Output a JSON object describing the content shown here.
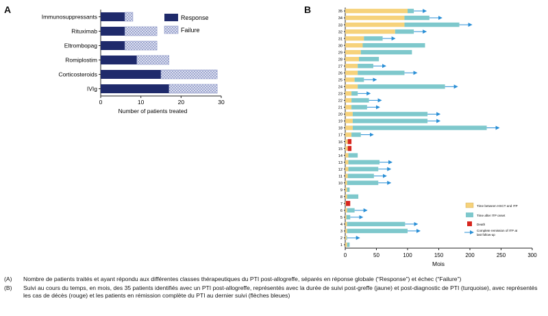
{
  "panel_a_letter": "A",
  "panel_b_letter": "B",
  "chart_data": [
    {
      "type": "bar",
      "orientation": "horizontal",
      "stacked": true,
      "categories": [
        "Immunosuppressants",
        "Rituximab",
        "Eltrombopag",
        "Romiplostim",
        "Corticosteroids",
        "IVIg"
      ],
      "series": [
        {
          "name": "Response",
          "values": [
            6,
            6,
            6,
            9,
            15,
            17
          ],
          "color": "#1f2a6b"
        },
        {
          "name": "Failure",
          "values": [
            2,
            8,
            8,
            8,
            14,
            12
          ],
          "color": "#c9d0ea"
        }
      ],
      "xlabel": "Number of patients treated",
      "xticks": [
        "0",
        "10",
        "20",
        "30"
      ],
      "xlim": [
        0,
        30
      ],
      "legend_position": "top-right"
    },
    {
      "type": "bar",
      "orientation": "horizontal",
      "stacked": true,
      "categories": [
        "1",
        "2",
        "3",
        "4",
        "5",
        "6",
        "7",
        "8",
        "9",
        "10",
        "11",
        "12",
        "13",
        "14",
        "15",
        "16",
        "17",
        "18",
        "19",
        "20",
        "21",
        "22",
        "23",
        "24",
        "25",
        "26",
        "27",
        "28",
        "29",
        "30",
        "31",
        "32",
        "33",
        "34",
        "35"
      ],
      "series": [
        {
          "name": "Time between HSCT and ITP",
          "color": "#f6d27b",
          "values": [
            3,
            2,
            3,
            3,
            2,
            3,
            1,
            3,
            3,
            3,
            4,
            5,
            5,
            5,
            4,
            4,
            10,
            12,
            12,
            12,
            10,
            10,
            10,
            20,
            15,
            20,
            20,
            22,
            25,
            28,
            30,
            80,
            95,
            95,
            100
          ]
        },
        {
          "name": "Time after ITP onset",
          "color": "#7ec8cc",
          "values": [
            4,
            1,
            97,
            93,
            6,
            12,
            0,
            18,
            4,
            50,
            42,
            48,
            50,
            15,
            0,
            0,
            15,
            215,
            120,
            120,
            25,
            28,
            10,
            140,
            15,
            75,
            25,
            32,
            82,
            100,
            30,
            30,
            88,
            40,
            10
          ]
        },
        {
          "name": "Death",
          "color": "#d7261e",
          "values": [
            0,
            0,
            0,
            0,
            0,
            0,
            7,
            0,
            0,
            0,
            0,
            0,
            0,
            0,
            6,
            6,
            0,
            0,
            0,
            0,
            0,
            0,
            0,
            0,
            0,
            0,
            0,
            0,
            0,
            0,
            0,
            0,
            0,
            0,
            0
          ]
        }
      ],
      "complete_remission_arrow": [
        false,
        true,
        true,
        true,
        true,
        true,
        false,
        false,
        false,
        true,
        true,
        true,
        true,
        false,
        false,
        false,
        true,
        true,
        true,
        true,
        true,
        true,
        true,
        true,
        true,
        true,
        true,
        false,
        false,
        false,
        true,
        true,
        true,
        true,
        true
      ],
      "arrow_label": "Complete remission of ITP at last follow-up",
      "arrow_color": "#2a8fd6",
      "xlabel": "Mois",
      "xticks": [
        "0",
        "50",
        "100",
        "150",
        "200",
        "250",
        "300"
      ],
      "xlim": [
        0,
        300
      ],
      "legend_position": "bottom-right"
    }
  ],
  "caption": [
    {
      "key": "(A)",
      "text": "Nombre de patients traités et ayant répondu aux différentes classes thérapeutiques du PTI post-allogreffe, séparés en réponse globale (“Response”) et échec (“Failure”)"
    },
    {
      "key": "(B)",
      "text": "Suivi au cours du temps, en mois, des 35 patients identifiés avec un PTI post-allogreffe, représentés avec la durée de suivi post-greffe (jaune) et post-diagnostic de PTI (turquoise), avec représentés les cas de décès (rouge) et les patients en rémission complète du PTI au dernier suivi (flèches bleues)"
    }
  ]
}
